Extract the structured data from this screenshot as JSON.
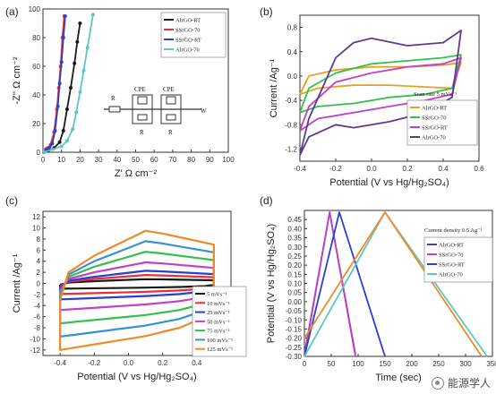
{
  "watermark": "能源学人",
  "colors": {
    "black": "#1a1a1a",
    "red": "#e8303a",
    "blue": "#2b3fd0",
    "magenta": "#c23fc8",
    "green": "#33c04a",
    "purple": "#5b3d8e",
    "orange": "#f08a28",
    "cyan": "#5ec7c4"
  },
  "chart_data": [
    {
      "panel": "(a)",
      "type": "line",
      "xlabel": "Z' Ω cm⁻²",
      "ylabel": "-Z'' Ω cm⁻²",
      "xlim": [
        0,
        100
      ],
      "ylim": [
        0,
        100
      ],
      "xticks": [
        "0",
        "10",
        "20",
        "30",
        "40",
        "50",
        "60",
        "70",
        "80",
        "90",
        "100"
      ],
      "yticks": [
        "0",
        "20",
        "40",
        "60",
        "80",
        "100"
      ],
      "legend_position": "top-right",
      "circuit_labels": [
        "R",
        "CPE",
        "R",
        "CPE",
        "R",
        "W"
      ],
      "series": [
        {
          "name": "AlrGO-RT",
          "color": "#1a1a1a",
          "marker": "circle",
          "x": [
            0.5,
            3,
            6,
            9,
            11,
            13,
            15,
            17,
            18.5,
            20
          ],
          "y": [
            0,
            1.5,
            3,
            7,
            15,
            30,
            45,
            62,
            77,
            90
          ]
        },
        {
          "name": "SSrGO-70",
          "color": "#e8303a",
          "marker": "circle",
          "x": [
            0.5,
            1.5,
            2.5,
            4,
            6,
            7.5,
            8.5,
            9.5,
            10.5,
            11.5
          ],
          "y": [
            0,
            2,
            3,
            5,
            14,
            30,
            45,
            60,
            80,
            95
          ]
        },
        {
          "name": "SSrGO-RT",
          "color": "#2b3fd0",
          "marker": "square",
          "x": [
            0.5,
            2,
            3.5,
            5,
            6.5,
            8,
            9,
            10,
            11,
            12
          ],
          "y": [
            0,
            2,
            3,
            6,
            15,
            32,
            48,
            63,
            80,
            95
          ]
        },
        {
          "name": "AlrGO-70",
          "color": "#5ec7c4",
          "marker": "diamond",
          "x": [
            0.5,
            5,
            10,
            13,
            16,
            18,
            20,
            22,
            24,
            27
          ],
          "y": [
            0,
            2,
            4,
            8,
            16,
            28,
            42,
            57,
            73,
            96
          ]
        }
      ]
    },
    {
      "panel": "(b)",
      "type": "line",
      "xlabel": "Potential (V vs Hg/Hg₂SO₄)",
      "ylabel": "Current /Ag⁻¹",
      "xlim": [
        -0.4,
        0.6
      ],
      "ylim": [
        -1.4,
        1.0
      ],
      "xticks": [
        "-0.4",
        "-0.2",
        "0.0",
        "0.2",
        "0.4",
        "0.6"
      ],
      "yticks": [
        "-1.2",
        "-0.8",
        "-0.4",
        "0.0",
        "0.4",
        "0.8"
      ],
      "annotation": "Scan rate 5 mVs⁻¹",
      "legend_position": "bottom-right",
      "series": [
        {
          "name": "AlrGO-RT",
          "color": "#e8a020",
          "x": [
            -0.4,
            -0.35,
            -0.2,
            0.0,
            0.2,
            0.4,
            0.5,
            0.45,
            0.3,
            0.1,
            -0.1,
            -0.3,
            -0.4
          ],
          "y": [
            -0.3,
            0.0,
            0.1,
            0.15,
            0.15,
            0.18,
            0.22,
            -0.2,
            -0.18,
            -0.15,
            -0.15,
            -0.2,
            -0.3
          ]
        },
        {
          "name": "SSrGO-70",
          "color": "#33c04a",
          "x": [
            -0.4,
            -0.35,
            -0.2,
            0.0,
            0.2,
            0.4,
            0.5,
            0.45,
            0.3,
            0.1,
            -0.1,
            -0.3,
            -0.4
          ],
          "y": [
            -0.6,
            -0.2,
            0.05,
            0.2,
            0.25,
            0.3,
            0.35,
            -0.2,
            -0.3,
            -0.35,
            -0.45,
            -0.5,
            -0.6
          ]
        },
        {
          "name": "SSrGO-RT",
          "color": "#c23fc8",
          "x": [
            -0.4,
            -0.35,
            -0.2,
            0.0,
            0.2,
            0.4,
            0.5,
            0.45,
            0.3,
            0.1,
            -0.1,
            -0.3,
            -0.4
          ],
          "y": [
            -0.9,
            -0.5,
            -0.1,
            0.05,
            0.15,
            0.2,
            0.3,
            -0.3,
            -0.4,
            -0.5,
            -0.6,
            -0.7,
            -0.9
          ]
        },
        {
          "name": "AlrGO-70",
          "color": "#5b3d8e",
          "x": [
            -0.4,
            -0.35,
            -0.2,
            -0.1,
            0.0,
            0.2,
            0.4,
            0.5,
            0.45,
            0.3,
            0.1,
            -0.1,
            -0.2,
            -0.35,
            -0.4
          ],
          "y": [
            -1.3,
            -0.7,
            0.3,
            0.55,
            0.62,
            0.5,
            0.55,
            0.75,
            -0.35,
            -0.6,
            -0.75,
            -0.85,
            -0.8,
            -1.0,
            -1.3
          ]
        }
      ]
    },
    {
      "panel": "(c)",
      "type": "line",
      "xlabel": "Potential (V vs Hg/Hg₂SO₄)",
      "ylabel": "Current /Ag⁻¹",
      "xlim": [
        -0.5,
        0.6
      ],
      "ylim": [
        -13,
        13
      ],
      "xticks": [
        "-0.4",
        "-0.2",
        "0.0",
        "0.2",
        "0.4"
      ],
      "yticks": [
        "-12",
        "-10",
        "-8",
        "-6",
        "-4",
        "-2",
        "0",
        "2",
        "4",
        "6",
        "8",
        "10",
        "12"
      ],
      "legend_position": "bottom-right",
      "scale_factors": [
        0.08,
        0.16,
        0.24,
        0.4,
        0.6,
        0.8,
        1.0
      ],
      "series": [
        {
          "name": "5 mVs⁻¹",
          "color": "#1a1a1a"
        },
        {
          "name": "10 mVs⁻¹",
          "color": "#e8303a"
        },
        {
          "name": "25 mVs⁻¹",
          "color": "#2b3fd0"
        },
        {
          "name": "50 mVs⁻¹",
          "color": "#c23fc8"
        },
        {
          "name": "75 mVs⁻¹",
          "color": "#33c04a"
        },
        {
          "name": "100 mVs⁻¹",
          "color": "#3b8fd6"
        },
        {
          "name": "125 mVs⁻¹",
          "color": "#f08a28"
        }
      ],
      "base_curve": {
        "x": [
          -0.4,
          -0.35,
          -0.2,
          0.0,
          0.1,
          0.2,
          0.35,
          0.5,
          0.5,
          0.45,
          0.3,
          0.1,
          -0.1,
          -0.3,
          -0.4,
          -0.4
        ],
        "y": [
          -3,
          2,
          5,
          8,
          9.5,
          9,
          8,
          7,
          -3,
          -6,
          -8,
          -9.5,
          -10.5,
          -11.5,
          -12,
          -3
        ]
      }
    },
    {
      "panel": "(d)",
      "type": "line",
      "xlabel": "Time (sec)",
      "ylabel": "Potential (V vs Hg/Hg₂SO₄)",
      "xlim": [
        0,
        350
      ],
      "ylim": [
        -0.3,
        0.5
      ],
      "xticks": [
        "0",
        "50",
        "100",
        "150",
        "200",
        "250",
        "300",
        "350"
      ],
      "yticks": [
        "-0.30",
        "-0.25",
        "-0.20",
        "-0.15",
        "-0.10",
        "-0.05",
        "0.00",
        "0.05",
        "0.10",
        "0.15",
        "0.20",
        "0.25",
        "0.30",
        "0.35",
        "0.40",
        "0.45"
      ],
      "annotation": "Current density 0.5 Ag⁻¹",
      "legend_position": "top-right",
      "series": [
        {
          "name": "AlrGO-RT",
          "color": "#5b3d8e",
          "x": [
            0,
            47,
            95
          ],
          "y": [
            -0.29,
            0.49,
            -0.29
          ]
        },
        {
          "name": "SSrGO-70",
          "color": "#c23fc8",
          "x": [
            0,
            47,
            95
          ],
          "y": [
            -0.3,
            0.49,
            -0.3
          ]
        },
        {
          "name": "SSrGO-RT",
          "color": "#2b3fd0",
          "x": [
            0,
            65,
            150
          ],
          "y": [
            -0.3,
            0.49,
            -0.3
          ]
        },
        {
          "name": "AlrGO-70",
          "color": "#5ec7c4",
          "x": [
            0,
            150,
            340
          ],
          "y": [
            -0.3,
            0.49,
            -0.3
          ]
        },
        {
          "name": "",
          "color": "#f08a28",
          "x": [
            0,
            150,
            330
          ],
          "y": [
            -0.2,
            0.49,
            -0.3
          ]
        }
      ]
    }
  ]
}
